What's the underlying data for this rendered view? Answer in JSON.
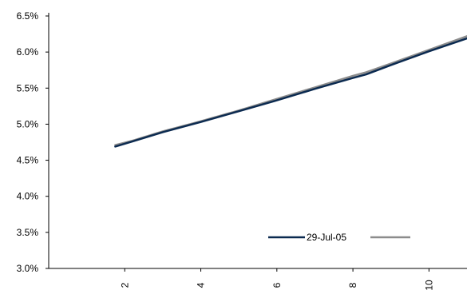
{
  "chart_data": {
    "type": "line",
    "title": "",
    "xlabel": "",
    "ylabel": "",
    "x_ticks": [
      2,
      4,
      6,
      8,
      10
    ],
    "y_ticks": [
      "3.0%",
      "3.5%",
      "4.0%",
      "4.5%",
      "5.0%",
      "5.5%",
      "6.0%",
      "6.5%"
    ],
    "xlim": [
      0.0,
      11.0
    ],
    "ylim": [
      3.0,
      6.5
    ],
    "grid": false,
    "legend_position": "bottom-right",
    "series": [
      {
        "name": "29-Jul-05",
        "color": "#0b2a50",
        "x": [
          1.75,
          2.2,
          3,
          4,
          5,
          6,
          7,
          8,
          8.35,
          9,
          10,
          11
        ],
        "y": [
          4.69,
          4.76,
          4.89,
          5.03,
          5.18,
          5.33,
          5.49,
          5.64,
          5.69,
          5.82,
          6.01,
          6.19
        ]
      },
      {
        "name": "",
        "color": "#8c8c8c",
        "x": [
          1.75,
          2.2,
          3,
          4,
          5,
          6,
          7,
          8,
          8.35,
          9,
          10,
          11
        ],
        "y": [
          4.71,
          4.77,
          4.9,
          5.04,
          5.19,
          5.35,
          5.51,
          5.67,
          5.72,
          5.84,
          6.03,
          6.22
        ]
      }
    ]
  }
}
